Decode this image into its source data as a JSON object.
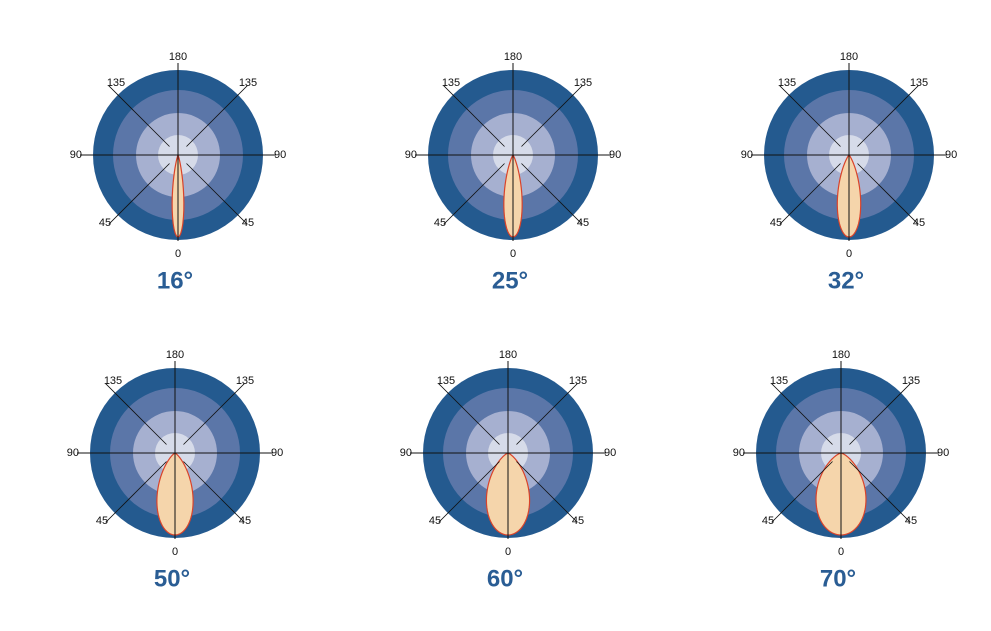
{
  "angle_labels": [
    "0",
    "45",
    "90",
    "135",
    "180"
  ],
  "panels": [
    {
      "value": 16,
      "label": "16°"
    },
    {
      "value": 25,
      "label": "25°"
    },
    {
      "value": 32,
      "label": "32°"
    },
    {
      "value": 50,
      "label": "50°"
    },
    {
      "value": 60,
      "label": "60°"
    },
    {
      "value": 70,
      "label": "70°"
    }
  ]
}
